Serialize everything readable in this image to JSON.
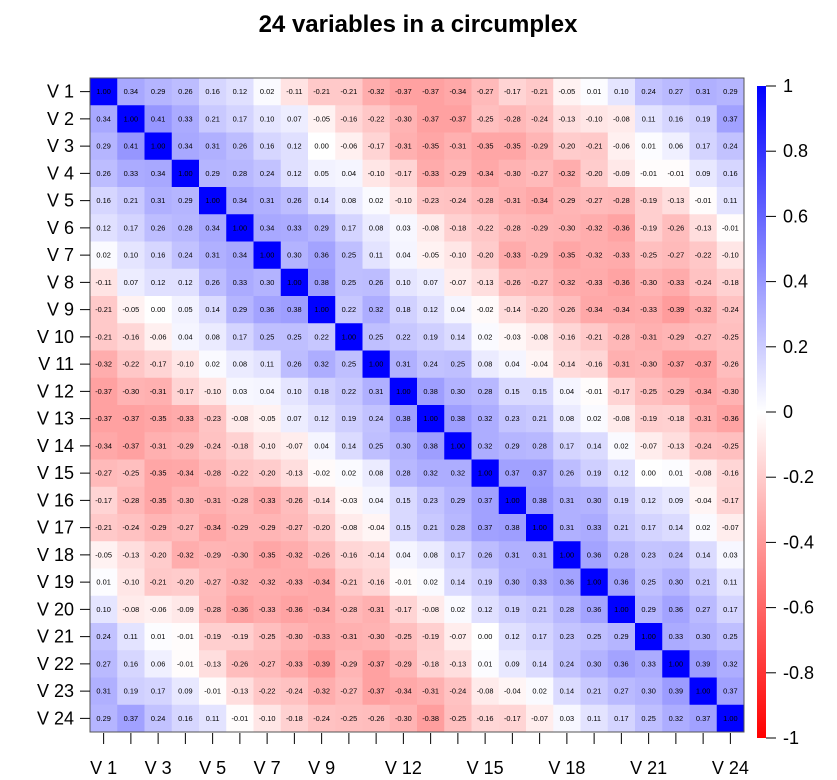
{
  "chart_data": {
    "type": "heatmap",
    "title": "24 variables in a circumplex",
    "row_labels": [
      "V 1",
      "V 2",
      "V 3",
      "V 4",
      "V 5",
      "V 6",
      "V 7",
      "V 8",
      "V 9",
      "V 10",
      "V 11",
      "V 12",
      "V 13",
      "V 14",
      "V 15",
      "V 16",
      "V 17",
      "V 18",
      "V 19",
      "V 20",
      "V 21",
      "V 22",
      "V 23",
      "V 24"
    ],
    "col_tick_labels": [
      "V 1",
      "V 3",
      "V 5",
      "V 7",
      "V 9",
      "V 12",
      "V 15",
      "V 18",
      "V 21",
      "V 24"
    ],
    "col_tick_positions": [
      1,
      3,
      5,
      7,
      9,
      12,
      15,
      18,
      21,
      24
    ],
    "legend_ticks": [
      "1",
      "0.8",
      "0.6",
      "0.4",
      "0.2",
      "0",
      "-0.2",
      "-0.4",
      "-0.6",
      "-0.8",
      "-1"
    ],
    "color_scale": {
      "min": -1,
      "max": 1,
      "low_color": "#ff0000",
      "mid_color": "#ffffff",
      "high_color": "#0000ff"
    },
    "values": [
      [
        1.0,
        0.34,
        0.29,
        0.26,
        0.16,
        0.12,
        0.02,
        -0.11,
        -0.21,
        -0.21,
        -0.32,
        -0.37,
        -0.37,
        -0.34,
        -0.27,
        -0.17,
        -0.21,
        -0.05,
        0.01,
        0.1,
        0.24,
        0.27,
        0.31,
        0.29
      ],
      [
        0.34,
        1.0,
        0.41,
        0.33,
        0.21,
        0.17,
        0.1,
        0.07,
        -0.05,
        -0.16,
        -0.22,
        -0.3,
        -0.37,
        -0.37,
        -0.25,
        -0.28,
        -0.24,
        -0.13,
        -0.1,
        -0.08,
        0.11,
        0.16,
        0.19,
        0.37
      ],
      [
        0.29,
        0.41,
        1.0,
        0.34,
        0.31,
        0.26,
        0.16,
        0.12,
        -0.0,
        -0.06,
        -0.17,
        -0.31,
        -0.35,
        -0.31,
        -0.35,
        -0.35,
        -0.29,
        -0.2,
        -0.21,
        -0.06,
        0.01,
        0.06,
        0.17,
        0.24
      ],
      [
        0.26,
        0.33,
        0.34,
        1.0,
        0.29,
        0.28,
        0.24,
        0.12,
        0.05,
        0.04,
        -0.1,
        -0.17,
        -0.33,
        -0.29,
        -0.34,
        -0.3,
        -0.27,
        -0.32,
        -0.2,
        -0.09,
        -0.01,
        -0.01,
        0.09,
        0.16
      ],
      [
        0.16,
        0.21,
        0.31,
        0.29,
        1.0,
        0.34,
        0.31,
        0.26,
        0.14,
        0.08,
        0.02,
        -0.1,
        -0.23,
        -0.24,
        -0.28,
        -0.31,
        -0.34,
        -0.29,
        -0.27,
        -0.28,
        -0.19,
        -0.13,
        -0.01,
        0.11
      ],
      [
        0.12,
        0.17,
        0.26,
        0.28,
        0.34,
        1.0,
        0.34,
        0.33,
        0.29,
        0.17,
        0.08,
        0.03,
        -0.08,
        -0.18,
        -0.22,
        -0.28,
        -0.29,
        -0.3,
        -0.32,
        -0.36,
        -0.19,
        -0.26,
        -0.13,
        -0.01
      ],
      [
        0.02,
        0.1,
        0.16,
        0.24,
        0.31,
        0.34,
        1.0,
        0.3,
        0.36,
        0.25,
        0.11,
        0.04,
        -0.05,
        -0.1,
        -0.2,
        -0.33,
        -0.29,
        -0.35,
        -0.32,
        -0.33,
        -0.25,
        -0.27,
        -0.22,
        -0.1
      ],
      [
        -0.11,
        0.07,
        0.12,
        0.12,
        0.26,
        0.33,
        0.3,
        1.0,
        0.38,
        0.25,
        0.26,
        0.1,
        0.07,
        -0.07,
        -0.13,
        -0.26,
        -0.27,
        -0.32,
        -0.33,
        -0.36,
        -0.3,
        -0.33,
        -0.24,
        -0.18
      ],
      [
        -0.21,
        -0.05,
        -0.0,
        0.05,
        0.14,
        0.29,
        0.36,
        0.38,
        1.0,
        0.22,
        0.32,
        0.18,
        0.12,
        0.04,
        -0.02,
        -0.14,
        -0.2,
        -0.26,
        -0.34,
        -0.34,
        -0.33,
        -0.39,
        -0.32,
        -0.24
      ],
      [
        -0.21,
        -0.16,
        -0.06,
        0.04,
        0.08,
        0.17,
        0.25,
        0.25,
        0.22,
        1.0,
        0.25,
        0.22,
        0.19,
        0.14,
        0.02,
        -0.03,
        -0.08,
        -0.16,
        -0.21,
        -0.28,
        -0.31,
        -0.29,
        -0.27,
        -0.25
      ],
      [
        -0.32,
        -0.22,
        -0.17,
        -0.1,
        0.02,
        0.08,
        0.11,
        0.26,
        0.32,
        0.25,
        1.0,
        0.31,
        0.24,
        0.25,
        0.08,
        0.04,
        -0.04,
        -0.14,
        -0.16,
        -0.31,
        -0.3,
        -0.37,
        -0.37,
        -0.26
      ],
      [
        -0.37,
        -0.3,
        -0.31,
        -0.17,
        -0.1,
        0.03,
        0.04,
        0.1,
        0.18,
        0.22,
        0.31,
        1.0,
        0.38,
        0.3,
        0.28,
        0.15,
        0.15,
        0.04,
        -0.01,
        -0.17,
        -0.25,
        -0.29,
        -0.34,
        -0.3
      ],
      [
        -0.37,
        -0.37,
        -0.35,
        -0.33,
        -0.23,
        -0.08,
        -0.05,
        0.07,
        0.12,
        0.19,
        0.24,
        0.38,
        1.0,
        0.38,
        0.32,
        0.23,
        0.21,
        0.08,
        0.02,
        -0.08,
        -0.19,
        -0.18,
        -0.31,
        -0.36
      ],
      [
        -0.34,
        -0.37,
        -0.31,
        -0.29,
        -0.24,
        -0.18,
        -0.1,
        -0.07,
        0.04,
        0.14,
        0.25,
        0.3,
        0.38,
        1.0,
        0.32,
        0.29,
        0.28,
        0.17,
        0.14,
        0.02,
        -0.07,
        -0.13,
        -0.24,
        -0.25
      ],
      [
        -0.27,
        -0.25,
        -0.35,
        -0.34,
        -0.28,
        -0.22,
        -0.2,
        -0.13,
        -0.02,
        0.02,
        0.08,
        0.28,
        0.32,
        0.32,
        1.0,
        0.37,
        0.37,
        0.26,
        0.19,
        0.12,
        0.0,
        0.01,
        -0.08,
        -0.16
      ],
      [
        -0.17,
        -0.28,
        -0.35,
        -0.3,
        -0.31,
        -0.28,
        -0.33,
        -0.26,
        -0.14,
        -0.03,
        0.04,
        0.15,
        0.23,
        0.29,
        0.37,
        1.0,
        0.38,
        0.31,
        0.3,
        0.19,
        0.12,
        0.09,
        -0.04,
        -0.17
      ],
      [
        -0.21,
        -0.24,
        -0.29,
        -0.27,
        -0.34,
        -0.29,
        -0.29,
        -0.27,
        -0.2,
        -0.08,
        -0.04,
        0.15,
        0.21,
        0.28,
        0.37,
        0.38,
        1.0,
        0.31,
        0.33,
        0.21,
        0.17,
        0.14,
        0.02,
        -0.07
      ],
      [
        -0.05,
        -0.13,
        -0.2,
        -0.32,
        -0.29,
        -0.3,
        -0.35,
        -0.32,
        -0.26,
        -0.16,
        -0.14,
        0.04,
        0.08,
        0.17,
        0.26,
        0.31,
        0.31,
        1.0,
        0.36,
        0.28,
        0.23,
        0.24,
        0.14,
        0.03
      ],
      [
        0.01,
        -0.1,
        -0.21,
        -0.2,
        -0.27,
        -0.32,
        -0.32,
        -0.33,
        -0.34,
        -0.21,
        -0.16,
        -0.01,
        0.02,
        0.14,
        0.19,
        0.3,
        0.33,
        0.36,
        1.0,
        0.36,
        0.25,
        0.3,
        0.21,
        0.11
      ],
      [
        0.1,
        -0.08,
        -0.06,
        -0.09,
        -0.28,
        -0.36,
        -0.33,
        -0.36,
        -0.34,
        -0.28,
        -0.31,
        -0.17,
        -0.08,
        0.02,
        0.12,
        0.19,
        0.21,
        0.28,
        0.36,
        1.0,
        0.29,
        0.36,
        0.27,
        0.17
      ],
      [
        0.24,
        0.11,
        0.01,
        -0.01,
        -0.19,
        -0.19,
        -0.25,
        -0.3,
        -0.33,
        -0.31,
        -0.3,
        -0.25,
        -0.19,
        -0.07,
        0.0,
        0.12,
        0.17,
        0.23,
        0.25,
        0.29,
        1.0,
        0.33,
        0.3,
        0.25
      ],
      [
        0.27,
        0.16,
        0.06,
        -0.01,
        -0.13,
        -0.26,
        -0.27,
        -0.33,
        -0.39,
        -0.29,
        -0.37,
        -0.29,
        -0.18,
        -0.13,
        0.01,
        0.09,
        0.14,
        0.24,
        0.3,
        0.36,
        0.33,
        1.0,
        0.39,
        0.32
      ],
      [
        0.31,
        0.19,
        0.17,
        0.09,
        -0.01,
        -0.13,
        -0.22,
        -0.24,
        -0.32,
        -0.27,
        -0.37,
        -0.34,
        -0.31,
        -0.24,
        -0.08,
        -0.04,
        0.02,
        0.14,
        0.21,
        0.27,
        0.3,
        0.39,
        1.0,
        0.37
      ],
      [
        0.29,
        0.37,
        0.24,
        0.16,
        0.11,
        -0.01,
        -0.1,
        -0.18,
        -0.24,
        -0.25,
        -0.26,
        -0.3,
        -0.38,
        -0.25,
        -0.16,
        -0.17,
        -0.07,
        0.03,
        0.11,
        0.17,
        0.25,
        0.32,
        0.37,
        1.0
      ]
    ]
  }
}
